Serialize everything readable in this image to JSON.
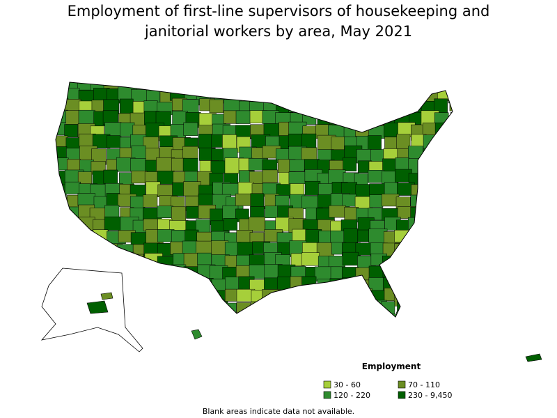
{
  "title": "Employment of first-line supervisors of housekeeping and janitorial workers by area, May 2021",
  "legend": {
    "title": "Employment",
    "items": [
      {
        "label": "30 - 60",
        "color": "#a6cf3a"
      },
      {
        "label": "70 - 110",
        "color": "#6b8e23"
      },
      {
        "label": "120 - 220",
        "color": "#2e8b2e"
      },
      {
        "label": "230 - 9,450",
        "color": "#005f00"
      }
    ]
  },
  "footnote": "Blank areas indicate data not available."
}
